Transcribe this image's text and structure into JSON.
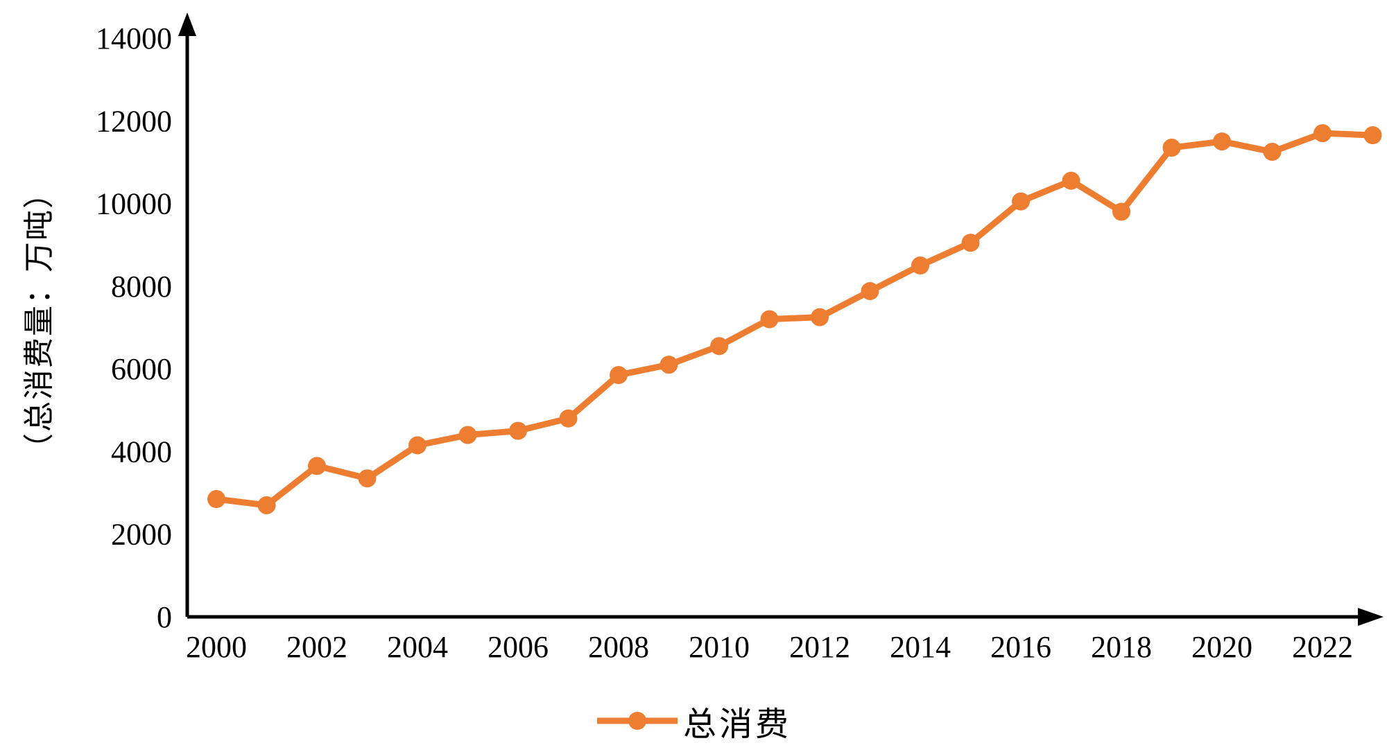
{
  "chart_data": {
    "type": "line",
    "title": "",
    "xlabel": "",
    "ylabel": "（总消费量：万吨）",
    "x": [
      2000,
      2001,
      2002,
      2003,
      2004,
      2005,
      2006,
      2007,
      2008,
      2009,
      2010,
      2011,
      2012,
      2013,
      2014,
      2015,
      2016,
      2017,
      2018,
      2019,
      2020,
      2021,
      2022,
      2023
    ],
    "xtick_labels": [
      "2000",
      "2002",
      "2004",
      "2006",
      "2008",
      "2010",
      "2012",
      "2014",
      "2016",
      "2018",
      "2020",
      "2022"
    ],
    "ylim": [
      0,
      14000
    ],
    "ytick_interval": 2000,
    "ytick_labels": [
      "0",
      "2000",
      "4000",
      "6000",
      "8000",
      "10000",
      "12000",
      "14000"
    ],
    "grid": "off",
    "legend_position": "bottom",
    "series": [
      {
        "name": "总消费",
        "color": "#ED7D31",
        "marker": "circle",
        "values": [
          2850,
          2700,
          3650,
          3350,
          4150,
          4400,
          4500,
          4800,
          5850,
          6100,
          6550,
          7200,
          7250,
          7880,
          8500,
          9050,
          10050,
          10550,
          9800,
          11350,
          11500,
          11250,
          11700,
          11650
        ]
      }
    ]
  },
  "colors": {
    "axis": "#000000",
    "tick_text": "#000000",
    "series_line": "#ED7D31"
  }
}
